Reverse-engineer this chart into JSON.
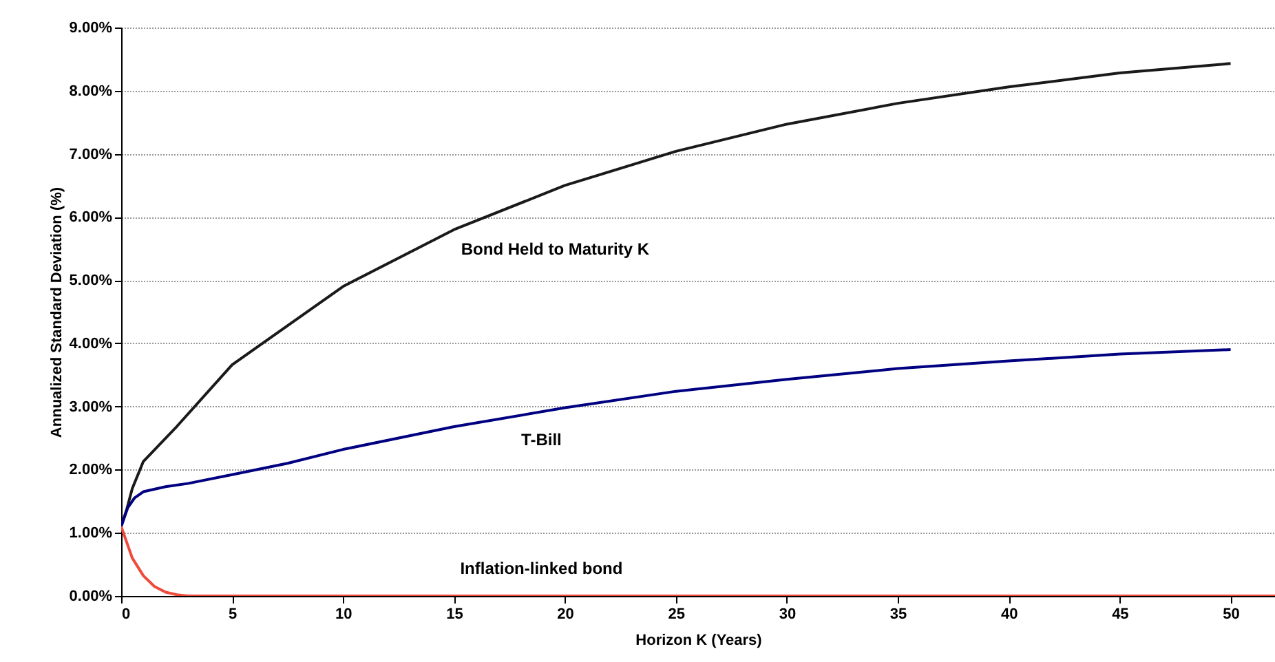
{
  "chart_data": {
    "type": "line",
    "xlabel": "Horizon K (Years)",
    "ylabel": "Annualized Standard Deviation (%)",
    "xlim": [
      0,
      52
    ],
    "ylim": [
      0,
      9
    ],
    "xticks": [
      0,
      5,
      10,
      15,
      20,
      25,
      30,
      35,
      40,
      45,
      50
    ],
    "yticks": [
      {
        "value": 0,
        "label": "0.00%"
      },
      {
        "value": 1,
        "label": "1.00%"
      },
      {
        "value": 2,
        "label": "2.00%"
      },
      {
        "value": 3,
        "label": "3.00%"
      },
      {
        "value": 4,
        "label": "4.00%"
      },
      {
        "value": 5,
        "label": "5.00%"
      },
      {
        "value": 6,
        "label": "6.00%"
      },
      {
        "value": 7,
        "label": "7.00%"
      },
      {
        "value": 8,
        "label": "8.00%"
      },
      {
        "value": 9,
        "label": "9.00%"
      }
    ],
    "grid": "y",
    "marker": "none",
    "line_style": "solid",
    "series": [
      {
        "name": "Bond Held to Maturity K",
        "color": "#1a1a1a",
        "x": [
          0,
          0.25,
          0.5,
          1,
          2.5,
          5,
          10,
          15,
          20,
          25,
          30,
          35,
          40,
          45,
          50
        ],
        "values": [
          1.1,
          1.37,
          1.7,
          2.13,
          2.68,
          3.66,
          4.9,
          5.8,
          6.5,
          7.04,
          7.47,
          7.8,
          8.06,
          8.28,
          8.43
        ]
      },
      {
        "name": "T-Bill",
        "color": "#000080",
        "x": [
          0,
          0.3,
          0.6,
          1,
          2,
          3,
          5,
          7.5,
          10,
          15,
          20,
          25,
          30,
          35,
          40,
          45,
          50
        ],
        "values": [
          1.1,
          1.4,
          1.55,
          1.65,
          1.73,
          1.78,
          1.92,
          2.1,
          2.32,
          2.68,
          2.98,
          3.24,
          3.43,
          3.6,
          3.72,
          3.83,
          3.9
        ]
      },
      {
        "name": "Inflation-linked bond",
        "color": "#f04a3c",
        "x": [
          0,
          0.5,
          1,
          1.5,
          2,
          2.5,
          3,
          52
        ],
        "values": [
          1.1,
          0.6,
          0.32,
          0.15,
          0.06,
          0.02,
          0,
          0
        ]
      }
    ]
  }
}
